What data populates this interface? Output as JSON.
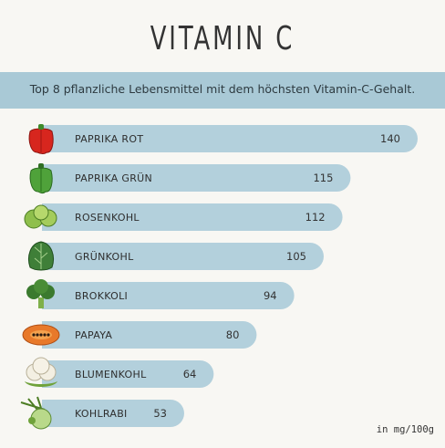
{
  "header": {
    "title": "VITAMIN C",
    "subtitle": "Top 8 pflanzliche Lebensmittel mit dem höchsten Vitamin-C-Gehalt."
  },
  "colors": {
    "background": "#f8f7f3",
    "bar": "#b3d0dc",
    "banner": "#a9c9d6",
    "text": "#333333"
  },
  "chart_data": {
    "type": "bar",
    "orientation": "horizontal",
    "title": "VITAMIN C",
    "subtitle": "Top 8 pflanzliche Lebensmittel mit dem höchsten Vitamin-C-Gehalt.",
    "unit_label": "in mg/100g",
    "categories": [
      "PAPRIKA ROT",
      "PAPRIKA GRÜN",
      "ROSENKOHL",
      "GRÜNKOHL",
      "BROKKOLI",
      "PAPAYA",
      "BLUMENKOHL",
      "KOHLRABI"
    ],
    "values": [
      140,
      115,
      112,
      105,
      94,
      80,
      64,
      53
    ],
    "icons": [
      "red-pepper-icon",
      "green-pepper-icon",
      "brussels-sprouts-icon",
      "kale-icon",
      "broccoli-icon",
      "papaya-icon",
      "cauliflower-icon",
      "kohlrabi-icon"
    ],
    "grid": false,
    "legend": "none"
  }
}
